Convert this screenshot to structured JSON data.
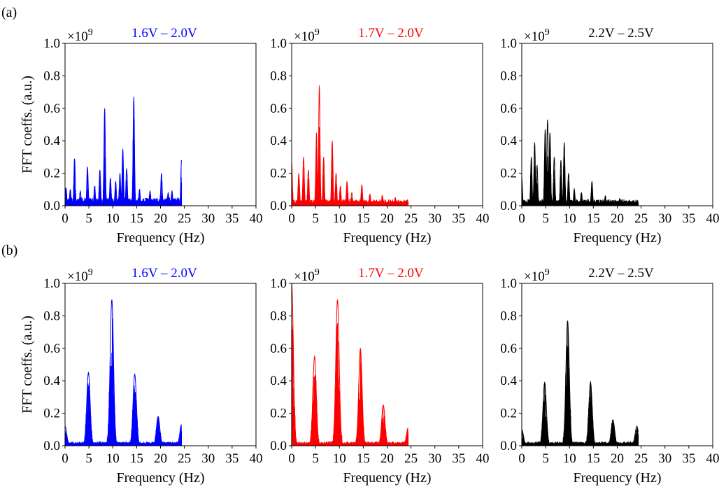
{
  "figure": {
    "row_labels": [
      "(a)",
      "(b)"
    ],
    "y_multiplier_base": "×10",
    "y_multiplier_exp": "9"
  },
  "chart_data": [
    {
      "id": "a1",
      "row": "a",
      "type": "line",
      "title": "1.6V – 2.0V",
      "color": "#0000ff",
      "xlabel": "Frequency (Hz)",
      "ylabel": "FFT coeffs. (a.u.)",
      "xlim": [
        0,
        40
      ],
      "ylim": [
        0,
        1.0
      ],
      "xticks": [
        0,
        5,
        10,
        15,
        20,
        25,
        30,
        35,
        40
      ],
      "yticks": [
        0.0,
        0.2,
        0.4,
        0.6,
        0.8,
        1.0
      ],
      "x_end": 24.4,
      "baseline": 0.04,
      "peaks": [
        [
          0.2,
          0.11
        ],
        [
          1.1,
          0.1
        ],
        [
          2.0,
          0.29
        ],
        [
          3.2,
          0.09
        ],
        [
          4.7,
          0.24
        ],
        [
          6.2,
          0.12
        ],
        [
          7.3,
          0.22
        ],
        [
          8.3,
          0.6
        ],
        [
          9.5,
          0.17
        ],
        [
          10.6,
          0.15
        ],
        [
          11.5,
          0.2
        ],
        [
          12.1,
          0.35
        ],
        [
          12.9,
          0.23
        ],
        [
          14.4,
          0.67
        ],
        [
          15.6,
          0.1
        ],
        [
          17.8,
          0.09
        ],
        [
          20.2,
          0.2
        ],
        [
          21.6,
          0.08
        ],
        [
          22.4,
          0.09
        ],
        [
          24.4,
          0.28
        ]
      ]
    },
    {
      "id": "a2",
      "row": "a",
      "type": "line",
      "title": "1.7V – 2.0V",
      "color": "#ff0000",
      "xlabel": "Frequency (Hz)",
      "ylabel": "",
      "xlim": [
        0,
        40
      ],
      "ylim": [
        0,
        1.0
      ],
      "xticks": [
        0,
        5,
        10,
        15,
        20,
        25,
        30,
        35,
        40
      ],
      "yticks": [
        0.0,
        0.2,
        0.4,
        0.6,
        0.8,
        1.0
      ],
      "x_end": 24.4,
      "baseline": 0.03,
      "peaks": [
        [
          0.0,
          0.27
        ],
        [
          1.5,
          0.2
        ],
        [
          2.5,
          0.3
        ],
        [
          3.5,
          0.22
        ],
        [
          5.2,
          0.45
        ],
        [
          5.8,
          0.74
        ],
        [
          6.7,
          0.3
        ],
        [
          8.5,
          0.4
        ],
        [
          9.3,
          0.2
        ],
        [
          10.2,
          0.12
        ],
        [
          11.6,
          0.15
        ],
        [
          12.6,
          0.08
        ],
        [
          14.7,
          0.13
        ],
        [
          16.4,
          0.07
        ],
        [
          19.0,
          0.06
        ],
        [
          21.7,
          0.05
        ]
      ]
    },
    {
      "id": "a3",
      "row": "a",
      "type": "line",
      "title": "2.2V – 2.5V",
      "color": "#000000",
      "xlabel": "Frequency (Hz)",
      "ylabel": "",
      "xlim": [
        0,
        40
      ],
      "ylim": [
        0,
        1.0
      ],
      "xticks": [
        0,
        5,
        10,
        15,
        20,
        25,
        30,
        35,
        40
      ],
      "yticks": [
        0.0,
        0.2,
        0.4,
        0.6,
        0.8,
        1.0
      ],
      "x_end": 24.4,
      "baseline": 0.03,
      "peaks": [
        [
          0.0,
          0.17
        ],
        [
          2.0,
          0.3
        ],
        [
          2.7,
          0.39
        ],
        [
          3.2,
          0.25
        ],
        [
          4.9,
          0.47
        ],
        [
          5.4,
          0.53
        ],
        [
          5.9,
          0.45
        ],
        [
          6.8,
          0.3
        ],
        [
          8.2,
          0.28
        ],
        [
          8.9,
          0.39
        ],
        [
          9.8,
          0.2
        ],
        [
          11.0,
          0.1
        ],
        [
          12.5,
          0.08
        ],
        [
          14.7,
          0.15
        ],
        [
          17.5,
          0.06
        ],
        [
          20.5,
          0.04
        ]
      ]
    },
    {
      "id": "b1",
      "row": "b",
      "type": "line",
      "title": "1.6V – 2.0V",
      "color": "#0000ff",
      "xlabel": "Frequency (Hz)",
      "ylabel": "FFT coeffs. (a.u.)",
      "xlim": [
        0,
        40
      ],
      "ylim": [
        0,
        1.0
      ],
      "xticks": [
        0,
        5,
        10,
        15,
        20,
        25,
        30,
        35,
        40
      ],
      "yticks": [
        0.0,
        0.2,
        0.4,
        0.6,
        0.8,
        1.0
      ],
      "x_end": 24.4,
      "baseline": 0.02,
      "peaks": [
        [
          0.0,
          0.12
        ],
        [
          4.9,
          0.45
        ],
        [
          9.8,
          0.9
        ],
        [
          14.6,
          0.44
        ],
        [
          19.5,
          0.18
        ],
        [
          24.4,
          0.13
        ]
      ]
    },
    {
      "id": "b2",
      "row": "b",
      "type": "line",
      "title": "1.7V – 2.0V",
      "color": "#ff0000",
      "xlabel": "Frequency (Hz)",
      "ylabel": "",
      "xlim": [
        0,
        40
      ],
      "ylim": [
        0,
        1.0
      ],
      "xticks": [
        0,
        5,
        10,
        15,
        20,
        25,
        30,
        35,
        40
      ],
      "yticks": [
        0.0,
        0.2,
        0.4,
        0.6,
        0.8,
        1.0
      ],
      "x_end": 24.4,
      "baseline": 0.02,
      "peaks": [
        [
          0.0,
          1.0
        ],
        [
          4.8,
          0.55
        ],
        [
          9.6,
          0.9
        ],
        [
          14.4,
          0.6
        ],
        [
          19.2,
          0.25
        ],
        [
          24.4,
          0.11
        ]
      ]
    },
    {
      "id": "b3",
      "row": "b",
      "type": "line",
      "title": "2.2V – 2.5V",
      "color": "#000000",
      "xlabel": "Frequency (Hz)",
      "ylabel": "",
      "xlim": [
        0,
        40
      ],
      "ylim": [
        0,
        1.0
      ],
      "xticks": [
        0,
        5,
        10,
        15,
        20,
        25,
        30,
        35,
        40
      ],
      "yticks": [
        0.0,
        0.2,
        0.4,
        0.6,
        0.8,
        1.0
      ],
      "x_end": 24.4,
      "baseline": 0.02,
      "peaks": [
        [
          0.0,
          0.1
        ],
        [
          4.8,
          0.39
        ],
        [
          9.6,
          0.77
        ],
        [
          14.4,
          0.39
        ],
        [
          19.1,
          0.16
        ],
        [
          24.1,
          0.12
        ]
      ]
    }
  ]
}
